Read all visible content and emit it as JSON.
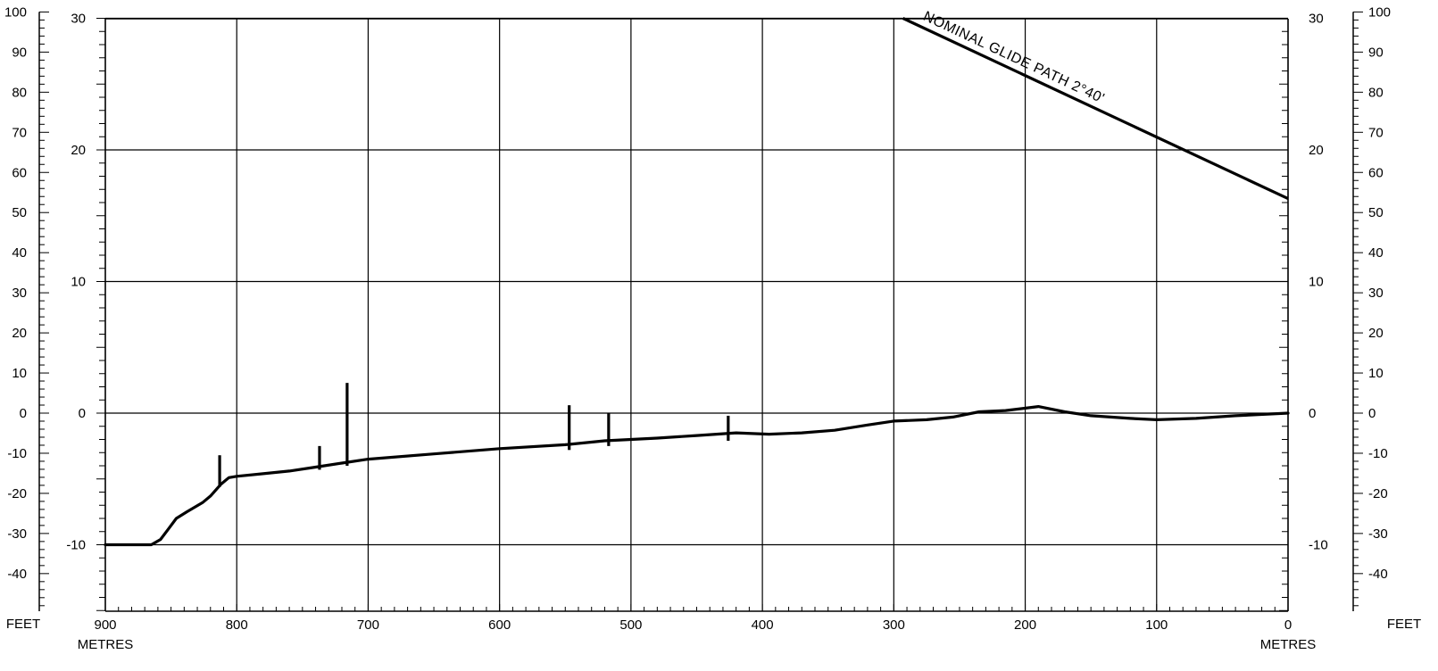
{
  "chart_data": {
    "type": "line",
    "title": "",
    "x_axis": {
      "unit_label": "METRES",
      "range": [
        900,
        0
      ],
      "ticks": [
        900,
        800,
        700,
        600,
        500,
        400,
        300,
        200,
        100,
        0
      ]
    },
    "y_axis_metres": {
      "range": [
        -15,
        30
      ],
      "ticks": [
        30,
        20,
        10,
        0,
        -10
      ]
    },
    "y_axis_feet": {
      "unit_label": "FEET",
      "ticks": [
        100,
        90,
        80,
        70,
        60,
        50,
        40,
        30,
        20,
        10,
        0,
        -10,
        -20,
        -30,
        -40
      ]
    },
    "grid": true,
    "series": [
      {
        "kind": "terrain",
        "x": [
          900,
          865,
          858,
          852,
          846,
          838,
          826,
          820,
          812,
          806,
          800,
          780,
          760,
          740,
          720,
          700,
          650,
          600,
          550,
          520,
          500,
          480,
          450,
          420,
          395,
          370,
          345,
          320,
          300,
          275,
          255,
          235,
          215,
          190,
          170,
          150,
          120,
          100,
          70,
          40,
          0
        ],
        "y": [
          -10,
          -10,
          -9.6,
          -8.8,
          -8.0,
          -7.5,
          -6.8,
          -6.3,
          -5.4,
          -4.9,
          -4.8,
          -4.6,
          -4.4,
          -4.1,
          -3.8,
          -3.5,
          -3.1,
          -2.7,
          -2.4,
          -2.1,
          -2.0,
          -1.9,
          -1.7,
          -1.5,
          -1.6,
          -1.5,
          -1.3,
          -0.9,
          -0.6,
          -0.5,
          -0.3,
          0.1,
          0.2,
          0.5,
          0.1,
          -0.2,
          -0.4,
          -0.5,
          -0.4,
          -0.2,
          0
        ]
      },
      {
        "kind": "glide_path",
        "name": "NOMINAL GLIDE PATH 2°40'",
        "x": [
          293,
          0
        ],
        "y": [
          30,
          16.3
        ]
      }
    ],
    "obstacles": [
      {
        "x": 813,
        "base": -5.6,
        "top": -3.2
      },
      {
        "x": 737,
        "base": -4.3,
        "top": -2.5
      },
      {
        "x": 716,
        "base": -4.0,
        "top": 2.3
      },
      {
        "x": 547,
        "base": -2.8,
        "top": 0.6
      },
      {
        "x": 517,
        "base": -2.5,
        "top": 0
      },
      {
        "x": 426,
        "base": -2.1,
        "top": -0.2
      }
    ]
  }
}
